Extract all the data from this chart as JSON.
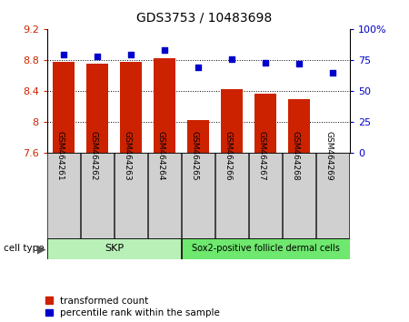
{
  "title": "GDS3753 / 10483698",
  "samples": [
    "GSM464261",
    "GSM464262",
    "GSM464263",
    "GSM464264",
    "GSM464265",
    "GSM464266",
    "GSM464267",
    "GSM464268",
    "GSM464269"
  ],
  "bar_values": [
    8.77,
    8.75,
    8.77,
    8.82,
    8.03,
    8.42,
    8.36,
    8.3,
    7.6
  ],
  "percentile_values": [
    79,
    78,
    79,
    83,
    69,
    76,
    73,
    72,
    65
  ],
  "skp_count": 4,
  "sox2_count": 5,
  "ylim_left": [
    7.6,
    9.2
  ],
  "ylim_right": [
    0,
    100
  ],
  "yticks_left": [
    7.6,
    8.0,
    8.4,
    8.8,
    9.2
  ],
  "yticks_right": [
    0,
    25,
    50,
    75,
    100
  ],
  "ytick_labels_left": [
    "7.6",
    "8",
    "8.4",
    "8.8",
    "9.2"
  ],
  "ytick_labels_right": [
    "0",
    "25",
    "50",
    "75",
    "100%"
  ],
  "bar_color": "#cc2200",
  "dot_color": "#0000cc",
  "bar_width": 0.65,
  "bar_bottom": 7.6,
  "legend_red_label": "transformed count",
  "legend_blue_label": "percentile rank within the sample",
  "cell_type_label": "cell type",
  "skp_label": "SKP",
  "sox2_label": "Sox2-positive follicle dermal cells",
  "skp_color": "#b8f0b8",
  "sox2_color": "#6ee86e",
  "sample_box_color": "#d0d0d0",
  "grid_dotted_at": [
    8.0,
    8.4,
    8.8
  ]
}
